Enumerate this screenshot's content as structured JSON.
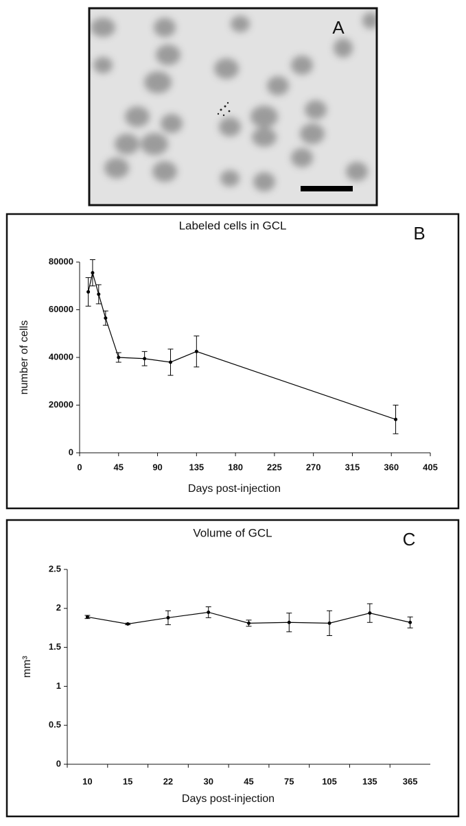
{
  "panel_a": {
    "label": "A"
  },
  "chart_data": [
    {
      "type": "line",
      "panel_label": "B",
      "title": "Labeled cells in GCL",
      "x_label": "Days post-injection",
      "y_label": "number of cells",
      "x": [
        10,
        15,
        22,
        30,
        45,
        75,
        105,
        135,
        365
      ],
      "series": [
        {
          "color": "#000000",
          "values": [
            67500,
            75500,
            66500,
            56500,
            40000,
            39500,
            38000,
            42500,
            14000
          ],
          "errors": [
            6000,
            5500,
            4000,
            3000,
            2000,
            3000,
            5500,
            6500,
            6000
          ]
        }
      ],
      "xlim": [
        0,
        405
      ],
      "xticks": [
        0,
        45,
        90,
        135,
        180,
        225,
        270,
        315,
        360,
        405
      ],
      "ylim": [
        0,
        80000
      ],
      "yticks": [
        0,
        20000,
        40000,
        60000,
        80000
      ],
      "grid": false
    },
    {
      "type": "line",
      "panel_label": "C",
      "title": "Volume of GCL",
      "x_label": "Days post-injection",
      "y_label": "mm³",
      "categories": [
        "10",
        "15",
        "22",
        "30",
        "45",
        "75",
        "105",
        "135",
        "365"
      ],
      "series": [
        {
          "color": "#000000",
          "values": [
            1.89,
            1.8,
            1.88,
            1.95,
            1.81,
            1.82,
            1.81,
            1.94,
            1.82
          ],
          "errors": [
            0.02,
            0.01,
            0.09,
            0.07,
            0.04,
            0.12,
            0.16,
            0.12,
            0.07
          ]
        }
      ],
      "ylim": [
        0,
        2.5
      ],
      "yticks": [
        0,
        0.5,
        1,
        1.5,
        2,
        2.5
      ],
      "grid": false
    }
  ]
}
